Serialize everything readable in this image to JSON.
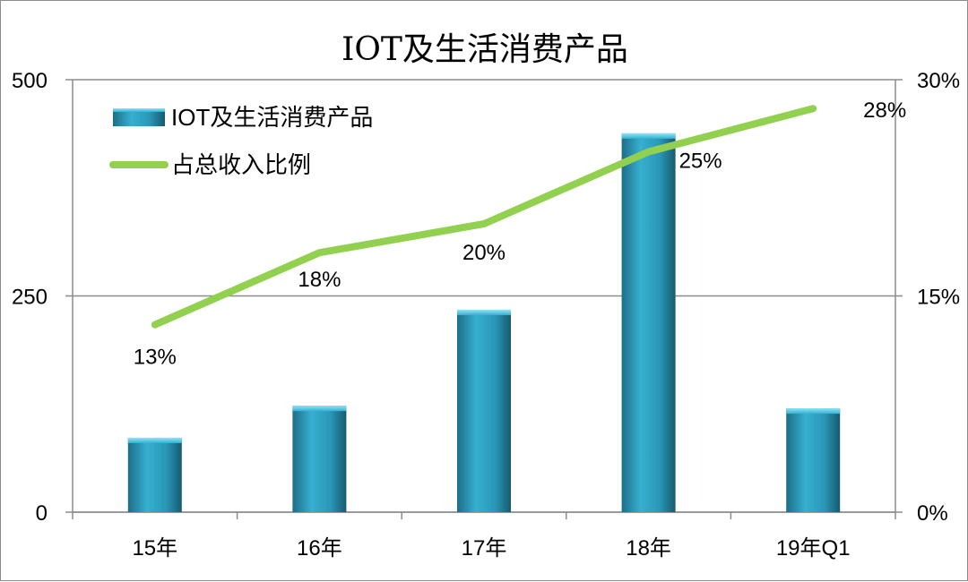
{
  "chart_data": {
    "type": "bar",
    "title": "IOT及生活消费产品",
    "categories": [
      "15年",
      "16年",
      "17年",
      "18年",
      "19年Q1"
    ],
    "series": [
      {
        "name": "IOT及生活消费产品",
        "type": "bar",
        "axis": "left",
        "values": [
          86,
          123,
          234,
          438,
          120
        ]
      },
      {
        "name": "占总收入比例",
        "type": "line",
        "axis": "right",
        "values": [
          0.13,
          0.18,
          0.2,
          0.25,
          0.28
        ],
        "labels": [
          "13%",
          "18%",
          "20%",
          "25%",
          "28%"
        ]
      }
    ],
    "y_left": {
      "min": 0,
      "max": 500,
      "ticks": [
        0,
        250,
        500
      ],
      "tick_labels": [
        "0",
        "250",
        "500"
      ]
    },
    "y_right": {
      "min": 0,
      "max": 0.3,
      "ticks": [
        0,
        0.15,
        0.3
      ],
      "tick_labels": [
        "0%",
        "15%",
        "30%"
      ]
    },
    "grid": "horizontal",
    "legend_position": "top-left",
    "colors": {
      "bar": "#2e9fc0",
      "bar_dark": "#1f6f88",
      "line": "#92d050",
      "grid": "#8c8c8c"
    }
  }
}
